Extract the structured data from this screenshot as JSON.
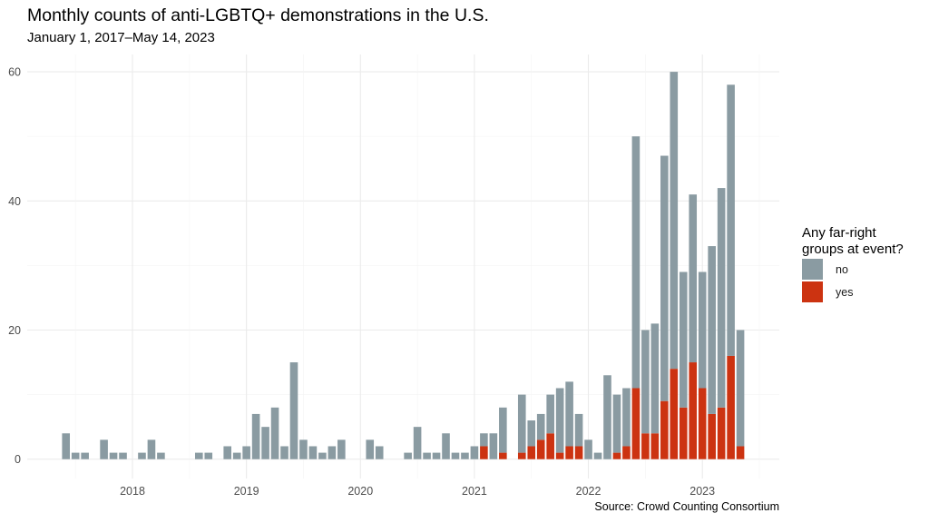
{
  "title": "Monthly counts of anti-LGBTQ+ demonstrations in the U.S.",
  "subtitle": "January 1, 2017–May 14, 2023",
  "caption": "Source: Crowd Counting Consortium",
  "legend": {
    "title_line1": "Any far-right",
    "title_line2": "groups at event?",
    "items": [
      {
        "label": "no",
        "color": "#8a9ba2"
      },
      {
        "label": "yes",
        "color": "#cc3311"
      }
    ]
  },
  "chart_data": {
    "type": "bar",
    "stacked": true,
    "title": "Monthly counts of anti-LGBTQ+ demonstrations in the U.S.",
    "subtitle": "January 1, 2017–May 14, 2023",
    "xlabel": "",
    "ylabel": "",
    "ylim": [
      0,
      62
    ],
    "yticks": [
      0,
      20,
      40,
      60
    ],
    "xticks": [
      "2018",
      "2019",
      "2020",
      "2021",
      "2022",
      "2023"
    ],
    "grid": true,
    "legend_position": "right",
    "categories": [
      "2017-01",
      "2017-02",
      "2017-03",
      "2017-04",
      "2017-05",
      "2017-06",
      "2017-07",
      "2017-08",
      "2017-09",
      "2017-10",
      "2017-11",
      "2017-12",
      "2018-01",
      "2018-02",
      "2018-03",
      "2018-04",
      "2018-05",
      "2018-06",
      "2018-07",
      "2018-08",
      "2018-09",
      "2018-10",
      "2018-11",
      "2018-12",
      "2019-01",
      "2019-02",
      "2019-03",
      "2019-04",
      "2019-05",
      "2019-06",
      "2019-07",
      "2019-08",
      "2019-09",
      "2019-10",
      "2019-11",
      "2019-12",
      "2020-01",
      "2020-02",
      "2020-03",
      "2020-04",
      "2020-05",
      "2020-06",
      "2020-07",
      "2020-08",
      "2020-09",
      "2020-10",
      "2020-11",
      "2020-12",
      "2021-01",
      "2021-02",
      "2021-03",
      "2021-04",
      "2021-05",
      "2021-06",
      "2021-07",
      "2021-08",
      "2021-09",
      "2021-10",
      "2021-11",
      "2021-12",
      "2022-01",
      "2022-02",
      "2022-03",
      "2022-04",
      "2022-05",
      "2022-06",
      "2022-07",
      "2022-08",
      "2022-09",
      "2022-10",
      "2022-11",
      "2022-12",
      "2023-01",
      "2023-02",
      "2023-03",
      "2023-04",
      "2023-05"
    ],
    "series": [
      {
        "name": "no",
        "color": "#8a9ba2",
        "values": [
          0,
          0,
          0,
          0,
          0,
          4,
          1,
          1,
          0,
          3,
          1,
          1,
          0,
          1,
          3,
          1,
          0,
          0,
          0,
          1,
          1,
          0,
          2,
          1,
          2,
          7,
          5,
          8,
          2,
          15,
          3,
          2,
          1,
          2,
          3,
          0,
          0,
          3,
          2,
          0,
          0,
          1,
          5,
          1,
          1,
          4,
          1,
          1,
          2,
          2,
          4,
          7,
          0,
          9,
          4,
          4,
          6,
          10,
          10,
          5,
          3,
          1,
          13,
          9,
          9,
          39,
          16,
          17,
          38,
          46,
          21,
          26,
          18,
          26,
          34,
          42,
          18
        ]
      },
      {
        "name": "yes",
        "color": "#cc3311",
        "values": [
          0,
          0,
          0,
          0,
          0,
          0,
          0,
          0,
          0,
          0,
          0,
          0,
          0,
          0,
          0,
          0,
          0,
          0,
          0,
          0,
          0,
          0,
          0,
          0,
          0,
          0,
          0,
          0,
          0,
          0,
          0,
          0,
          0,
          0,
          0,
          0,
          0,
          0,
          0,
          0,
          0,
          0,
          0,
          0,
          0,
          0,
          0,
          0,
          0,
          2,
          0,
          1,
          0,
          1,
          2,
          3,
          4,
          1,
          2,
          2,
          0,
          0,
          0,
          1,
          2,
          11,
          4,
          4,
          9,
          14,
          8,
          15,
          11,
          7,
          8,
          16,
          2
        ]
      }
    ],
    "totals": [
      0,
      0,
      0,
      0,
      0,
      4,
      1,
      1,
      0,
      3,
      1,
      1,
      0,
      1,
      3,
      1,
      0,
      0,
      0,
      1,
      1,
      0,
      2,
      1,
      2,
      7,
      5,
      8,
      2,
      15,
      3,
      2,
      1,
      2,
      3,
      0,
      0,
      3,
      2,
      0,
      0,
      1,
      5,
      1,
      1,
      4,
      1,
      1,
      2,
      4,
      4,
      8,
      0,
      10,
      6,
      7,
      10,
      11,
      12,
      7,
      3,
      1,
      13,
      10,
      11,
      50,
      20,
      21,
      47,
      60,
      29,
      41,
      29,
      33,
      42,
      58,
      20
    ]
  }
}
